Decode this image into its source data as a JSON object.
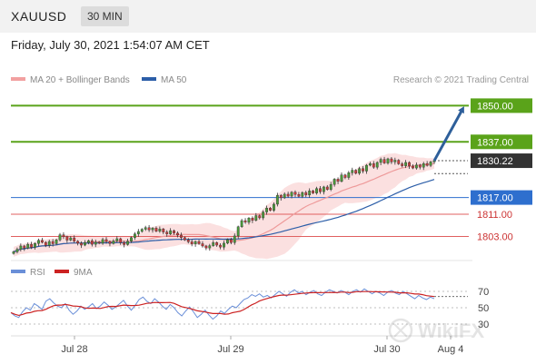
{
  "header": {
    "symbol": "XAUUSD",
    "timeframe": "30 MIN",
    "datetime": "Friday, July 30, 2021 1:54:07 AM CET"
  },
  "legend": {
    "ma20": "MA 20 + Bollinger Bands",
    "ma50": "MA 50",
    "credit": "Research © 2021 Trading Central"
  },
  "indicator_legend": {
    "rsi": "RSI",
    "ma9": "9MA"
  },
  "watermark": "WikiFX",
  "colors": {
    "resistance": "#5aa31a",
    "support_strong": "#2e6fce",
    "support": "#e06060",
    "current": "#333333",
    "arrow": "#2e5f9a",
    "rsi": "#6a8fd8",
    "ma9": "#cc2222",
    "bull": "#4a9a3a",
    "bear": "#cc3a3a"
  },
  "chart_data": [
    {
      "type": "candlestick",
      "x_ticks": [
        "Jul 28",
        "Jul 29",
        "Jul 30",
        "Aug 4"
      ],
      "ylim": [
        1796,
        1856
      ],
      "levels": [
        {
          "label": "1850.00",
          "value": 1850.0,
          "kind": "resistance"
        },
        {
          "label": "1837.00",
          "value": 1837.0,
          "kind": "resistance"
        },
        {
          "label": "1830.22",
          "value": 1830.22,
          "kind": "current"
        },
        {
          "label": "1817.00",
          "value": 1817.0,
          "kind": "support_strong"
        },
        {
          "label": "1811.00",
          "value": 1811.0,
          "kind": "support"
        },
        {
          "label": "1803.00",
          "value": 1803.0,
          "kind": "support"
        }
      ],
      "series": [
        {
          "name": "MA 20 + Bollinger Bands"
        },
        {
          "name": "MA 50"
        }
      ],
      "close": [
        1797.5,
        1798.4,
        1799.6,
        1798.8,
        1800.2,
        1799.1,
        1800.5,
        1801.6,
        1800.9,
        1799.8,
        1801.2,
        1800.4,
        1801.8,
        1803.6,
        1802.9,
        1801.7,
        1802.5,
        1801.3,
        1800.6,
        1799.9,
        1800.8,
        1801.5,
        1800.2,
        1801.0,
        1800.6,
        1801.9,
        1801.2,
        1800.5,
        1801.4,
        1802.2,
        1800.8,
        1800.1,
        1801.3,
        1802.6,
        1803.9,
        1804.8,
        1805.6,
        1806.2,
        1805.4,
        1806.0,
        1804.9,
        1805.7,
        1804.6,
        1803.9,
        1805.1,
        1804.2,
        1803.5,
        1802.6,
        1801.8,
        1801.1,
        1800.3,
        1801.2,
        1800.4,
        1799.6,
        1798.9,
        1799.7,
        1800.8,
        1799.9,
        1799.2,
        1800.6,
        1801.9,
        1800.8,
        1803.2,
        1806.5,
        1808.7,
        1808.1,
        1809.6,
        1808.8,
        1810.5,
        1809.7,
        1811.8,
        1813.2,
        1812.4,
        1814.6,
        1817.8,
        1816.9,
        1818.2,
        1817.5,
        1818.9,
        1818.1,
        1817.4,
        1818.8,
        1817.9,
        1819.4,
        1818.6,
        1820.2,
        1819.1,
        1820.8,
        1819.9,
        1821.7,
        1823.6,
        1822.8,
        1825.1,
        1824.2,
        1825.9,
        1826.8,
        1825.7,
        1827.4,
        1826.5,
        1828.6,
        1829.2,
        1827.9,
        1829.6,
        1830.7,
        1829.4,
        1830.9,
        1829.8,
        1830.4,
        1829.1,
        1828.4,
        1829.6,
        1828.3,
        1827.6,
        1828.7,
        1827.9,
        1829.2,
        1828.5,
        1829.8,
        1830.22
      ],
      "rsi": [
        44,
        40,
        38,
        45,
        50,
        47,
        55,
        52,
        48,
        58,
        61,
        56,
        52,
        50,
        55,
        47,
        42,
        46,
        52,
        48,
        51,
        55,
        49,
        52,
        57,
        53,
        48,
        51,
        55,
        59,
        52,
        47,
        53,
        60,
        63,
        58,
        55,
        61,
        57,
        52,
        48,
        54,
        50,
        44,
        40,
        46,
        51,
        45,
        38,
        42,
        47,
        41,
        36,
        40,
        46,
        43,
        48,
        52,
        50,
        55,
        60,
        62,
        66,
        64,
        67,
        63,
        65,
        62,
        66,
        70,
        67,
        64,
        69,
        72,
        68,
        70,
        66,
        69,
        71,
        67,
        65,
        69,
        72,
        70,
        68,
        71,
        69,
        66,
        70,
        72,
        69,
        73,
        70,
        67,
        70,
        68,
        65,
        69,
        71,
        68,
        66,
        70,
        67,
        64,
        61,
        65,
        62,
        60,
        63,
        61
      ],
      "rsi_ticks": [
        70,
        50,
        30
      ]
    }
  ]
}
